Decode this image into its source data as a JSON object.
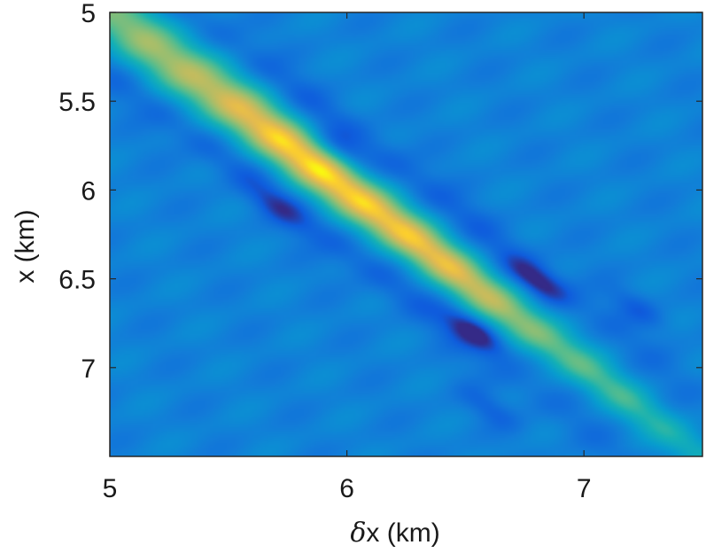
{
  "chart_data": {
    "type": "heatmap",
    "title": "",
    "xlabel_symbol": "δ",
    "xlabel_text": "x (km)",
    "ylabel": "x (km)",
    "xlim": [
      5,
      7.5
    ],
    "ylim": [
      5,
      7.5
    ],
    "y_reversed": true,
    "xticks": [
      5,
      6,
      7
    ],
    "xtick_labels": [
      "5",
      "6",
      "7"
    ],
    "yticks": [
      5,
      5.5,
      6,
      6.5,
      7
    ],
    "ytick_labels": [
      "5",
      "5.5",
      "6",
      "6.5",
      "7"
    ],
    "colormap": "parula",
    "colors": {
      "low": "#352a87",
      "background": "#1f8ad8",
      "mid": "#2bb1c4",
      "high": "#f9fb0e"
    },
    "features": {
      "ridge": {
        "from": [
          5.0,
          5.0
        ],
        "to": [
          7.5,
          7.5
        ],
        "peak_at": [
          6.0,
          6.0
        ],
        "peak_value": 1.0
      },
      "negative_lobes": [
        {
          "x": 6.54,
          "y": 6.8,
          "value": -0.55
        },
        {
          "x": 6.8,
          "y": 6.51,
          "value": -0.5
        },
        {
          "x": 5.98,
          "y": 5.77,
          "value": -0.28
        },
        {
          "x": 5.71,
          "y": 6.1,
          "value": -0.25
        },
        {
          "x": 7.23,
          "y": 6.67,
          "value": -0.22
        },
        {
          "x": 6.6,
          "y": 7.23,
          "value": -0.2
        }
      ]
    }
  }
}
